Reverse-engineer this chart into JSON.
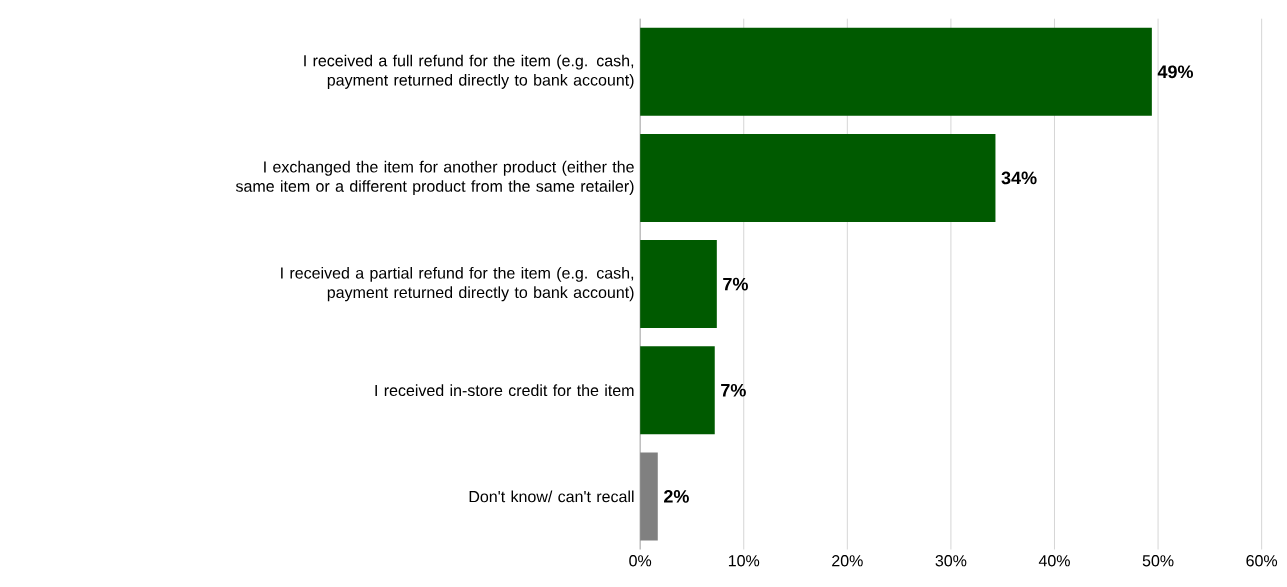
{
  "chart_data": {
    "type": "bar",
    "orientation": "horizontal",
    "categories": [
      "I received a full refund for the item (e.g. cash, payment returned directly to bank account)",
      "I exchanged the item for another product (either the same item or a different product from the same retailer)",
      "I received a partial refund for the item (e.g. cash, payment returned directly to bank account)",
      "I received in-store credit for the item",
      "Don't know/ can't recall"
    ],
    "values": [
      49.4,
      34.3,
      7.4,
      7.2,
      1.7
    ],
    "value_labels": [
      "49%",
      "34%",
      "7%",
      "7%",
      "2%"
    ],
    "colors": [
      "#005a00",
      "#005a00",
      "#005a00",
      "#005a00",
      "#808080"
    ],
    "xlim": [
      0,
      60
    ],
    "xticks": [
      {
        "value": 0,
        "label": "0%"
      },
      {
        "value": 10,
        "label": "10%"
      },
      {
        "value": 20,
        "label": "20%"
      },
      {
        "value": 30,
        "label": "30%"
      },
      {
        "value": 40,
        "label": "40%"
      },
      {
        "value": 50,
        "label": "50%"
      },
      {
        "value": 60,
        "label": "60%"
      }
    ],
    "grid": "x"
  }
}
